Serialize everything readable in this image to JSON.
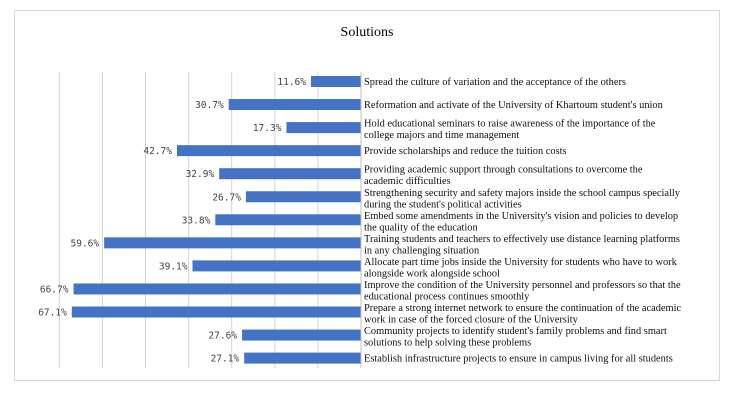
{
  "chart_data": {
    "type": "bar",
    "orientation": "horizontal",
    "title": "Solutions",
    "xlabel": "",
    "ylabel": "",
    "xlim": [
      0,
      70
    ],
    "grid": true,
    "bar_color": "#4472c4",
    "value_suffix": "%",
    "categories": [
      [
        "Spread the culture of variation and the acceptance of the others"
      ],
      [
        "Reformation and activate of the University of Khartoum student's union"
      ],
      [
        "Hold educational seminars to raise awareness of the importance of the",
        "college majors and time management"
      ],
      [
        "Provide scholarships and reduce the tuition costs"
      ],
      [
        "Providing academic support through consultations to overcome the",
        "academic difficulties"
      ],
      [
        "Strengthening security and safety majors inside the school campus specially",
        "during the student's political activities"
      ],
      [
        "Embed some amendments in the University's vision and policies to develop",
        "the quality of the education"
      ],
      [
        "Training students and teachers to effectively use distance learning platforms",
        "in any challenging situation"
      ],
      [
        "Allocate part time jobs inside the University for students who have to work",
        "alongside work alongside school"
      ],
      [
        "Improve the condition of the University personnel and professors so that the",
        "educational process continues smoothly"
      ],
      [
        "Prepare a strong internet network to ensure the continuation of the academic",
        "work in case of the forced closure of the University"
      ],
      [
        "Community projects to identify student's family problems and find smart",
        "solutions to help solving these problems"
      ],
      [
        "Establish infrastructure projects to ensure in campus living for all students"
      ]
    ],
    "values": [
      11.6,
      30.7,
      17.3,
      42.7,
      32.9,
      26.7,
      33.8,
      59.6,
      39.1,
      66.7,
      67.1,
      27.6,
      27.1
    ],
    "value_labels": [
      "11.6%",
      "30.7%",
      "17.3%",
      "42.7%",
      "32.9%",
      "26.7%",
      "33.8%",
      "59.6%",
      "39.1%",
      "66.7%",
      "67.1%",
      "27.6%",
      "27.1%"
    ]
  }
}
